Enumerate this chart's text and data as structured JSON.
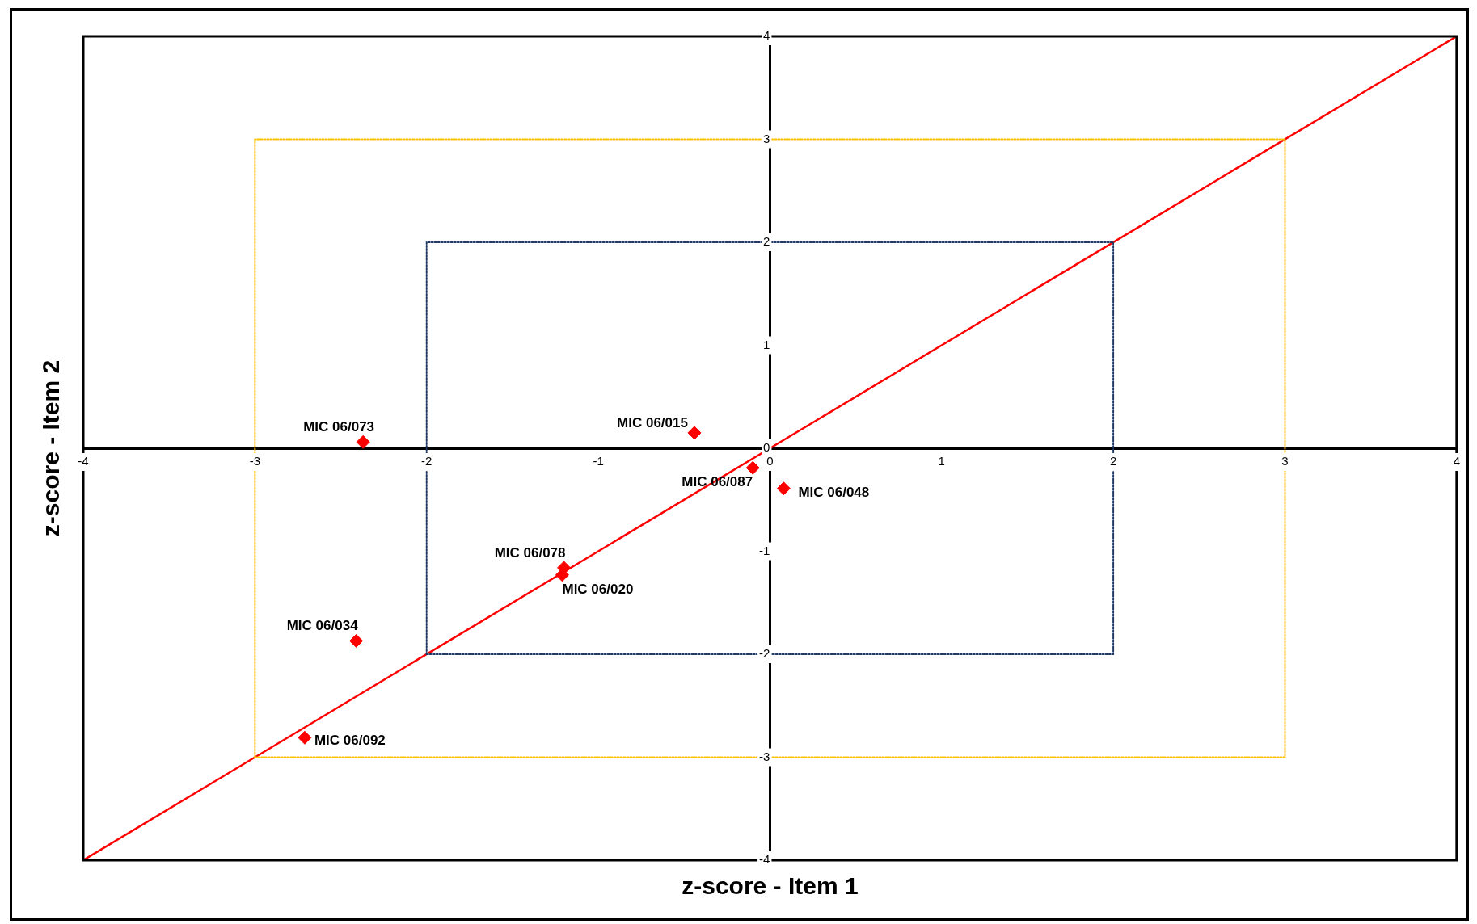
{
  "chart_data": {
    "type": "scatter",
    "xlabel": "z-score - Item 1",
    "ylabel": "z-score - Item 2",
    "xlim": [
      -4,
      4
    ],
    "ylim": [
      -4,
      4
    ],
    "xticks": [
      -4,
      -3,
      -2,
      -1,
      0,
      1,
      2,
      3,
      4
    ],
    "yticks": [
      -4,
      -3,
      -2,
      -1,
      0,
      1,
      2,
      3,
      4
    ],
    "grid": false,
    "legend": false,
    "series": [
      {
        "type": "line",
        "color": "#ffc000",
        "line_style": "dotted",
        "marker": "none",
        "x": [
          -3,
          -3,
          3,
          3
        ],
        "values": [
          -3,
          3,
          3,
          -3
        ]
      },
      {
        "type": "line",
        "color": "#ffc000",
        "line_style": "dotted",
        "marker": "none",
        "x": [
          -3,
          3
        ],
        "values": [
          -3,
          -3
        ]
      },
      {
        "type": "line",
        "color": "#1f3864",
        "line_style": "dotted",
        "marker": "none",
        "x": [
          -2,
          -2,
          2,
          2
        ],
        "values": [
          -2,
          2,
          2,
          -2
        ]
      },
      {
        "type": "line",
        "color": "#1f3864",
        "line_style": "dotted",
        "marker": "none",
        "x": [
          -2,
          2
        ],
        "values": [
          -2,
          -2
        ]
      },
      {
        "type": "line",
        "color": "#ff0000",
        "line_style": "solid",
        "marker": "none",
        "x": [
          -4,
          4
        ],
        "values": [
          -4,
          4
        ]
      },
      {
        "type": "scatter",
        "color": "#ff0000",
        "marker": "diamond",
        "x": [
          -2.37,
          -0.44,
          -0.1,
          0.08,
          -1.2,
          -1.21,
          -2.41,
          -2.71
        ],
        "values": [
          0.06,
          0.15,
          -0.19,
          -0.39,
          -1.16,
          -1.23,
          -1.87,
          -2.81
        ]
      }
    ],
    "annotations": [
      {
        "text": "MIC 06/073",
        "x": -2.37,
        "y": 0.06
      },
      {
        "text": "MIC 06/015",
        "x": -0.44,
        "y": 0.15
      },
      {
        "text": "MIC 06/087",
        "x": -0.1,
        "y": -0.19
      },
      {
        "text": "MIC 06/048",
        "x": 0.08,
        "y": -0.39
      },
      {
        "text": "MIC 06/078",
        "x": -1.2,
        "y": -1.16
      },
      {
        "text": "MIC 06/020",
        "x": -1.21,
        "y": -1.23
      },
      {
        "text": "MIC 06/034",
        "x": -2.41,
        "y": -1.87
      },
      {
        "text": "MIC 06/092",
        "x": -2.71,
        "y": -2.81
      }
    ]
  }
}
